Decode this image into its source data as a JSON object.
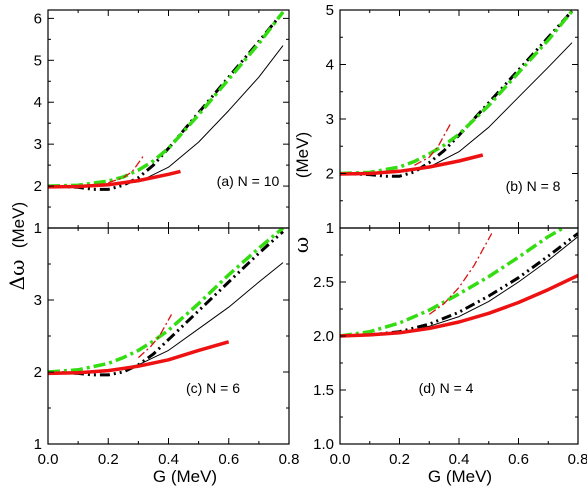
{
  "figure": {
    "xlabel": "G (MeV)",
    "ylabel_left_symbol": "Δω",
    "ylabel_left_unit": "(MeV)",
    "ylabel_right_upper": "(MeV)",
    "ylabel_right_lower_symbol": "ω"
  },
  "chart_data": [
    {
      "type": "line",
      "panel_label": "(a) N = 10",
      "xlim": [
        0,
        0.8
      ],
      "ylim": [
        1,
        6.2
      ],
      "xticks": [
        0.0,
        0.2,
        0.4,
        0.6,
        0.8
      ],
      "yticks": [
        1,
        2,
        3,
        4,
        5,
        6
      ],
      "series": [
        {
          "style": "thin-black-solid",
          "x": [
            0,
            0.1,
            0.2,
            0.3,
            0.4,
            0.5,
            0.6,
            0.7,
            0.78
          ],
          "y": [
            2.0,
            2.0,
            2.02,
            2.1,
            2.45,
            3.05,
            3.8,
            4.6,
            5.35
          ]
        },
        {
          "style": "black-dash-dot-dot",
          "x": [
            0,
            0.1,
            0.15,
            0.2,
            0.25,
            0.3,
            0.35,
            0.4,
            0.5,
            0.6,
            0.7,
            0.78
          ],
          "y": [
            2.0,
            1.97,
            1.92,
            1.92,
            2.02,
            2.2,
            2.5,
            2.9,
            3.75,
            4.6,
            5.45,
            6.15
          ]
        },
        {
          "style": "green-dash-dot",
          "x": [
            0,
            0.1,
            0.2,
            0.25,
            0.3,
            0.35,
            0.4,
            0.5,
            0.6,
            0.7,
            0.78
          ],
          "y": [
            2.0,
            2.02,
            2.12,
            2.22,
            2.38,
            2.6,
            2.9,
            3.7,
            4.55,
            5.4,
            6.15
          ]
        },
        {
          "style": "red-dash-thin",
          "x": [
            0.2,
            0.25,
            0.28,
            0.3,
            0.32
          ],
          "y": [
            2.08,
            2.2,
            2.35,
            2.55,
            2.75
          ]
        },
        {
          "style": "red-thick-solid",
          "x": [
            0,
            0.1,
            0.2,
            0.3,
            0.4,
            0.44
          ],
          "y": [
            1.98,
            1.99,
            2.03,
            2.13,
            2.28,
            2.35
          ]
        }
      ]
    },
    {
      "type": "line",
      "panel_label": "(b) N = 8",
      "xlim": [
        0,
        0.8
      ],
      "ylim": [
        1,
        5
      ],
      "xticks": [
        0.0,
        0.2,
        0.4,
        0.6,
        0.8
      ],
      "yticks": [
        1,
        2,
        3,
        4,
        5
      ],
      "series": [
        {
          "style": "thin-black-solid",
          "x": [
            0,
            0.1,
            0.2,
            0.3,
            0.4,
            0.5,
            0.6,
            0.7,
            0.78
          ],
          "y": [
            2.0,
            2.0,
            2.03,
            2.12,
            2.4,
            2.85,
            3.4,
            3.95,
            4.4
          ]
        },
        {
          "style": "black-dash-dot-dot",
          "x": [
            0,
            0.1,
            0.15,
            0.2,
            0.25,
            0.3,
            0.35,
            0.4,
            0.5,
            0.6,
            0.7,
            0.78
          ],
          "y": [
            2.0,
            1.98,
            1.95,
            1.95,
            2.03,
            2.2,
            2.42,
            2.7,
            3.3,
            3.9,
            4.5,
            4.98
          ]
        },
        {
          "style": "green-dash-dot",
          "x": [
            0,
            0.1,
            0.2,
            0.25,
            0.3,
            0.35,
            0.4,
            0.5,
            0.6,
            0.7,
            0.78
          ],
          "y": [
            2.0,
            2.02,
            2.12,
            2.22,
            2.36,
            2.52,
            2.72,
            3.25,
            3.85,
            4.45,
            4.98
          ]
        },
        {
          "style": "red-dash-thin",
          "x": [
            0.25,
            0.3,
            0.33,
            0.35,
            0.37
          ],
          "y": [
            2.15,
            2.3,
            2.5,
            2.7,
            2.9
          ]
        },
        {
          "style": "red-thick-solid",
          "x": [
            0,
            0.1,
            0.2,
            0.3,
            0.4,
            0.48
          ],
          "y": [
            1.99,
            2.0,
            2.04,
            2.12,
            2.23,
            2.34
          ]
        }
      ]
    },
    {
      "type": "line",
      "panel_label": "(c) N = 6",
      "xlim": [
        0,
        0.8
      ],
      "ylim": [
        1,
        4
      ],
      "xticks": [
        0.0,
        0.2,
        0.4,
        0.6,
        0.8
      ],
      "yticks": [
        1,
        2,
        3
      ],
      "series": [
        {
          "style": "thin-black-solid",
          "x": [
            0,
            0.1,
            0.2,
            0.3,
            0.4,
            0.5,
            0.6,
            0.7,
            0.78
          ],
          "y": [
            2.0,
            2.0,
            2.02,
            2.1,
            2.3,
            2.6,
            2.9,
            3.25,
            3.52
          ]
        },
        {
          "style": "black-dash-dot-dot",
          "x": [
            0,
            0.1,
            0.15,
            0.2,
            0.25,
            0.3,
            0.35,
            0.4,
            0.5,
            0.6,
            0.7,
            0.78
          ],
          "y": [
            2.0,
            1.98,
            1.96,
            1.96,
            2.0,
            2.1,
            2.25,
            2.45,
            2.85,
            3.25,
            3.65,
            3.95
          ]
        },
        {
          "style": "green-dash-dot",
          "x": [
            0,
            0.1,
            0.2,
            0.25,
            0.3,
            0.35,
            0.4,
            0.5,
            0.6,
            0.7,
            0.78
          ],
          "y": [
            2.0,
            2.03,
            2.12,
            2.2,
            2.3,
            2.43,
            2.58,
            2.95,
            3.35,
            3.72,
            4.0
          ]
        },
        {
          "style": "red-dash-thin",
          "x": [
            0.3,
            0.34,
            0.37,
            0.39,
            0.41
          ],
          "y": [
            2.2,
            2.35,
            2.5,
            2.65,
            2.8
          ]
        },
        {
          "style": "red-thick-solid",
          "x": [
            0,
            0.1,
            0.2,
            0.3,
            0.4,
            0.5,
            0.6
          ],
          "y": [
            1.98,
            1.99,
            2.02,
            2.08,
            2.17,
            2.3,
            2.42
          ]
        }
      ]
    },
    {
      "type": "line",
      "panel_label": "(d) N = 4",
      "xlim": [
        0,
        0.8
      ],
      "ylim": [
        1.0,
        3.0
      ],
      "xticks": [
        0.0,
        0.2,
        0.4,
        0.6,
        0.8
      ],
      "yticks": [
        "1.0",
        "1.5",
        "2.0",
        "2.5"
      ],
      "series": [
        {
          "style": "thin-black-solid",
          "x": [
            0,
            0.1,
            0.2,
            0.3,
            0.4,
            0.5,
            0.6,
            0.7,
            0.8
          ],
          "y": [
            2.0,
            2.0,
            2.03,
            2.09,
            2.18,
            2.32,
            2.5,
            2.7,
            2.92
          ]
        },
        {
          "style": "black-dash-dot-dot",
          "x": [
            0,
            0.1,
            0.2,
            0.3,
            0.4,
            0.5,
            0.6,
            0.7,
            0.8
          ],
          "y": [
            2.0,
            2.01,
            2.04,
            2.11,
            2.22,
            2.37,
            2.54,
            2.74,
            2.95
          ]
        },
        {
          "style": "green-dash-dot",
          "x": [
            0,
            0.1,
            0.2,
            0.3,
            0.4,
            0.5,
            0.6,
            0.7,
            0.75
          ],
          "y": [
            2.0,
            2.04,
            2.12,
            2.24,
            2.39,
            2.55,
            2.73,
            2.92,
            3.0
          ]
        },
        {
          "style": "red-dash-thin",
          "x": [
            0.3,
            0.35,
            0.4,
            0.45,
            0.48,
            0.51
          ],
          "y": [
            2.2,
            2.3,
            2.45,
            2.65,
            2.8,
            2.95
          ]
        },
        {
          "style": "red-thick-solid",
          "x": [
            0,
            0.1,
            0.2,
            0.3,
            0.4,
            0.5,
            0.6,
            0.7,
            0.8
          ],
          "y": [
            2.0,
            2.01,
            2.03,
            2.07,
            2.13,
            2.21,
            2.31,
            2.43,
            2.56
          ]
        }
      ]
    }
  ],
  "styles": {
    "thin-black-solid": {
      "color": "#000000",
      "width": 1,
      "dash": ""
    },
    "black-dash-dot-dot": {
      "color": "#000000",
      "width": 3,
      "dash": "10,4,2,4,2,4"
    },
    "green-dash-dot": {
      "color": "#33dd11",
      "width": 3.5,
      "dash": "12,4,3,4"
    },
    "red-dash-thin": {
      "color": "#dd1111",
      "width": 1.3,
      "dash": "8,3,2,3"
    },
    "red-thick-solid": {
      "color": "#ee1111",
      "width": 3.5,
      "dash": ""
    }
  }
}
